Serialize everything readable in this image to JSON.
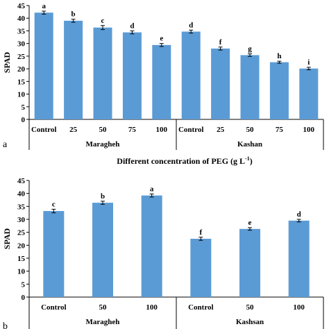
{
  "chart_data": [
    {
      "type": "bar",
      "panel_label": "a",
      "ylabel": "SPAD",
      "xlabel_main": "Different concentration of PEG (g L",
      "xlabel_sup": "-1",
      "xlabel_close": ")",
      "ylim": [
        0,
        45
      ],
      "yticks": [
        "0",
        "5",
        "10",
        "15",
        "20",
        "25",
        "30",
        "35",
        "40",
        "45"
      ],
      "bar_color": "#5b9bd5",
      "groups": [
        {
          "name": "Maragheh",
          "categories": [
            "Control",
            "25",
            "50",
            "75",
            "100"
          ],
          "values": [
            42.2,
            39.0,
            36.3,
            34.4,
            29.4
          ],
          "errors": [
            0.6,
            0.6,
            0.8,
            0.6,
            0.6
          ],
          "letters": [
            "a",
            "b",
            "c",
            "d",
            "e"
          ]
        },
        {
          "name": "Kashan",
          "categories": [
            "Control",
            "25",
            "50",
            "75",
            "100"
          ],
          "values": [
            34.7,
            28.0,
            25.4,
            22.6,
            20.1
          ],
          "errors": [
            0.6,
            0.6,
            0.5,
            0.4,
            0.5
          ],
          "letters": [
            "d",
            "f",
            "g",
            "h",
            "i"
          ]
        }
      ]
    },
    {
      "type": "bar",
      "panel_label": "b",
      "ylabel": "SPAD",
      "ylim": [
        0,
        45
      ],
      "yticks": [
        "0",
        "5",
        "10",
        "15",
        "20",
        "25",
        "30",
        "35",
        "40",
        "45"
      ],
      "bar_color": "#5b9bd5",
      "groups": [
        {
          "name": "Maragheh",
          "categories": [
            "Control",
            "50",
            "100"
          ],
          "values": [
            33.2,
            36.4,
            39.2
          ],
          "errors": [
            0.7,
            0.6,
            0.6
          ],
          "letters": [
            "c",
            "b",
            "a"
          ]
        },
        {
          "name": "Kashsan",
          "categories": [
            "Control",
            "50",
            "100"
          ],
          "values": [
            22.5,
            26.3,
            29.5
          ],
          "errors": [
            0.6,
            0.5,
            0.5
          ],
          "letters": [
            "f",
            "e",
            "d"
          ]
        }
      ]
    }
  ]
}
